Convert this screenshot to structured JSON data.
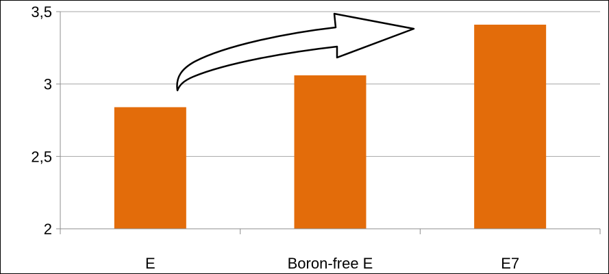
{
  "chart_data": {
    "type": "bar",
    "categories": [
      "E",
      "Boron-free E",
      "E7"
    ],
    "values": [
      2.84,
      3.06,
      3.41
    ],
    "y_tick_labels": [
      "2",
      "2,5",
      "3",
      "3,5"
    ],
    "ylim": [
      2,
      3.5
    ],
    "grid": true,
    "legend": "none",
    "annotation": "curved arrow pointing right from the E bar",
    "colors": {
      "bar": "#E36C0A",
      "grid": "#A6A6A6",
      "axis": "#8C8C8C",
      "frame": "#000000"
    }
  }
}
